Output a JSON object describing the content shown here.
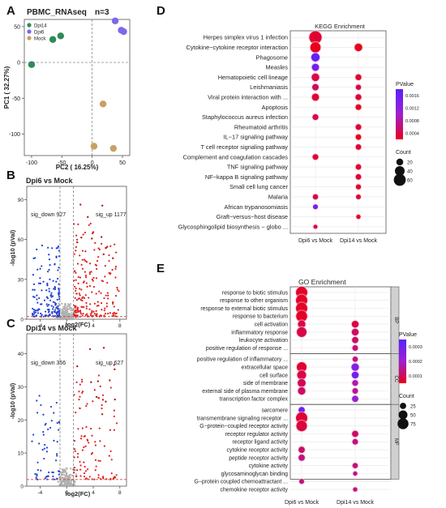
{
  "panel_labels": {
    "A": "A",
    "B": "B",
    "C": "C",
    "D": "D",
    "E": "E"
  },
  "colors": {
    "dpi14": "#2e8b57",
    "dpi6": "#7b68ee",
    "mock": "#c8a062",
    "down": "#1f3fd6",
    "up": "#e02020",
    "ns": "#b0b0b0",
    "pv_high": "#e8001c",
    "pv_low": "#5a20ff"
  },
  "chart_data": [
    {
      "type": "scatter",
      "id": "pca",
      "title": "PBMC_RNAseq",
      "subtitle": "n=3",
      "xlabel": "PC2 ( 16.25%)",
      "ylabel": "PC1 ( 32.27%)",
      "xlim": [
        -112,
        62
      ],
      "ylim": [
        -130,
        60
      ],
      "xticks": [
        -100,
        -50,
        0,
        50
      ],
      "yticks": [
        -100,
        -50,
        0,
        50
      ],
      "legend": [
        "Dpi14",
        "Dpi6",
        "Mock"
      ],
      "series": [
        {
          "name": "Dpi14",
          "color": "#2e8b57",
          "points": [
            [
              -100,
              -3
            ],
            [
              -65,
              32
            ],
            [
              -52,
              37
            ]
          ]
        },
        {
          "name": "Dpi6",
          "color": "#7b68ee",
          "points": [
            [
              38,
              58
            ],
            [
              48,
              45
            ],
            [
              52,
              43
            ]
          ]
        },
        {
          "name": "Mock",
          "color": "#c8a062",
          "points": [
            [
              18,
              -58
            ],
            [
              3,
              -117
            ],
            [
              35,
              -120
            ]
          ]
        }
      ]
    },
    {
      "type": "scatter",
      "id": "volcano_dpi6",
      "title": "Dpi6 vs Mock",
      "xlabel": "log2(FC)",
      "ylabel": "-log10 (pVal)",
      "xlim": [
        -6,
        9
      ],
      "ylim": [
        0,
        100
      ],
      "xticks": [
        -4,
        0,
        4,
        8
      ],
      "yticks": [
        0,
        30,
        60,
        90
      ],
      "thresholds": {
        "fc": [
          -1,
          1
        ],
        "p": 2
      },
      "annotations": [
        "sig_down 927",
        "sig_up 1177"
      ],
      "sig_down": 927,
      "sig_up": 1177
    },
    {
      "type": "scatter",
      "id": "volcano_dpi14",
      "title": "Dpi14 vs Mock",
      "xlabel": "log2(FC)",
      "ylabel": "-log10 (pVal)",
      "xlim": [
        -6,
        9
      ],
      "ylim": [
        0,
        46
      ],
      "xticks": [
        -4,
        0,
        4,
        8
      ],
      "yticks": [
        0,
        10,
        20,
        30,
        40
      ],
      "thresholds": {
        "fc": [
          -1,
          1
        ],
        "p": 2
      },
      "annotations": [
        "sig_down 356",
        "sig_up 627"
      ],
      "sig_down": 356,
      "sig_up": 627
    },
    {
      "type": "scatter",
      "id": "kegg",
      "title": "KEGG Enrichment",
      "categories": [
        "Dpi6 vs Mock",
        "Dpi14 vs Mock"
      ],
      "terms": [
        "Herpes simplex virus 1 infection",
        "Cytokine−cytokine receptor interaction",
        "Phagosome",
        "Measles",
        "Hematopoietic cell lineage",
        "Leishmaniasis",
        "Viral protein interaction with ...",
        "Apoptosis",
        "Staphylococcus aureus infection",
        "Rheumatoid arthritis",
        "IL−17 signaling pathway",
        "T cell receptor signaling pathway",
        "Complement and coagulation cascades",
        "TNF signaling pathway",
        "NF−kappa B signaling pathway",
        "Small cell lung cancer",
        "Malaria",
        "African trypanosomiasis",
        "Graft−versus−host disease",
        "Glycosphingolipid biosynthesis − globo ..."
      ],
      "legend_pvalue": {
        "title": "PValue",
        "ticks": [
          "0.0016",
          "0.0012",
          "0.0008",
          "0.0004"
        ],
        "range": [
          0.0001,
          0.0018
        ]
      },
      "legend_count": {
        "title": "Count",
        "values": [
          20,
          40,
          60
        ]
      },
      "points": [
        {
          "term": 0,
          "cat": 0,
          "count": 65,
          "p": 0.0002
        },
        {
          "term": 1,
          "cat": 0,
          "count": 45,
          "p": 5e-05
        },
        {
          "term": 1,
          "cat": 1,
          "count": 25,
          "p": 0.0001
        },
        {
          "term": 2,
          "cat": 0,
          "count": 30,
          "p": 0.0017
        },
        {
          "term": 3,
          "cat": 0,
          "count": 22,
          "p": 0.0015
        },
        {
          "term": 4,
          "cat": 0,
          "count": 25,
          "p": 0.0003
        },
        {
          "term": 4,
          "cat": 1,
          "count": 15,
          "p": 0.0002
        },
        {
          "term": 5,
          "cat": 0,
          "count": 18,
          "p": 0.0004
        },
        {
          "term": 5,
          "cat": 1,
          "count": 12,
          "p": 0.0003
        },
        {
          "term": 6,
          "cat": 0,
          "count": 22,
          "p": 0.0002
        },
        {
          "term": 6,
          "cat": 1,
          "count": 15,
          "p": 0.0002
        },
        {
          "term": 7,
          "cat": 1,
          "count": 14,
          "p": 0.0001
        },
        {
          "term": 8,
          "cat": 0,
          "count": 15,
          "p": 0.0003
        },
        {
          "term": 9,
          "cat": 1,
          "count": 14,
          "p": 0.0002
        },
        {
          "term": 10,
          "cat": 1,
          "count": 13,
          "p": 0.0001
        },
        {
          "term": 11,
          "cat": 1,
          "count": 13,
          "p": 0.0002
        },
        {
          "term": 12,
          "cat": 0,
          "count": 14,
          "p": 0.0002
        },
        {
          "term": 13,
          "cat": 1,
          "count": 13,
          "p": 0.0002
        },
        {
          "term": 14,
          "cat": 1,
          "count": 13,
          "p": 0.0002
        },
        {
          "term": 15,
          "cat": 1,
          "count": 11,
          "p": 0.0002
        },
        {
          "term": 16,
          "cat": 0,
          "count": 12,
          "p": 0.0003
        },
        {
          "term": 16,
          "cat": 1,
          "count": 10,
          "p": 0.0002
        },
        {
          "term": 17,
          "cat": 0,
          "count": 10,
          "p": 0.0015
        },
        {
          "term": 18,
          "cat": 1,
          "count": 8,
          "p": 0.0001
        },
        {
          "term": 19,
          "cat": 0,
          "count": 7,
          "p": 0.0003
        }
      ]
    },
    {
      "type": "scatter",
      "id": "go",
      "title": "GO Enrichment",
      "categories": [
        "Dpi6 vs Mock",
        "Dpi14 vs Mock"
      ],
      "facets": [
        {
          "name": "BP",
          "start": 0,
          "end": 7
        },
        {
          "name": "CC",
          "start": 8,
          "end": 13
        },
        {
          "name": "MF",
          "start": 14,
          "end": 22
        }
      ],
      "terms": [
        "response to biotic stimulus",
        "response to other organism",
        "response to external biotic stimulus",
        "response to bacterium",
        "cell activation",
        "inflammatory response",
        "leukocyte activation",
        "positive regulation of response ...",
        "positive regulation of inflammatory ...",
        "extracellular space",
        "cell surface",
        "side of membrane",
        "external side of plasma membrane",
        "transcription factor complex",
        "sarcomere",
        "transmembrane signaling receptor ...",
        "G−protein−coupled receptor activity",
        "receptor regulator activity",
        "receptor ligand activity",
        "cytokine receptor activity",
        "peptide receptor activity",
        "cytokine activity",
        "glycosaminoglycan binding",
        "G−protein coupled chemoattractant ...",
        "chemokine receptor activity"
      ],
      "legend_pvalue": {
        "title": "PValue",
        "ticks": [
          "0.0003",
          "0.0002",
          "0.0001"
        ],
        "range": [
          1e-05,
          0.00035
        ]
      },
      "legend_count": {
        "title": "Count",
        "values": [
          25,
          50,
          75
        ]
      },
      "points": [
        {
          "term": 0,
          "cat": 0,
          "count": 80,
          "p": 2e-05
        },
        {
          "term": 1,
          "cat": 0,
          "count": 80,
          "p": 2e-05
        },
        {
          "term": 2,
          "cat": 0,
          "count": 80,
          "p": 2e-05
        },
        {
          "term": 3,
          "cat": 0,
          "count": 75,
          "p": 2e-05
        },
        {
          "term": 4,
          "cat": 0,
          "count": 35,
          "p": 5e-05
        },
        {
          "term": 4,
          "cat": 1,
          "count": 30,
          "p": 5e-05
        },
        {
          "term": 5,
          "cat": 0,
          "count": 60,
          "p": 5e-05
        },
        {
          "term": 5,
          "cat": 1,
          "count": 30,
          "p": 8e-05
        },
        {
          "term": 6,
          "cat": 1,
          "count": 25,
          "p": 8e-05
        },
        {
          "term": 7,
          "cat": 1,
          "count": 20,
          "p": 0.0001
        },
        {
          "term": 8,
          "cat": 1,
          "count": 18,
          "p": 0.0001
        },
        {
          "term": 9,
          "cat": 0,
          "count": 60,
          "p": 3e-05
        },
        {
          "term": 9,
          "cat": 1,
          "count": 35,
          "p": 0.00025
        },
        {
          "term": 10,
          "cat": 0,
          "count": 50,
          "p": 5e-05
        },
        {
          "term": 10,
          "cat": 1,
          "count": 30,
          "p": 0.0003
        },
        {
          "term": 11,
          "cat": 0,
          "count": 40,
          "p": 6e-05
        },
        {
          "term": 11,
          "cat": 1,
          "count": 22,
          "p": 0.00015
        },
        {
          "term": 12,
          "cat": 0,
          "count": 35,
          "p": 8e-05
        },
        {
          "term": 12,
          "cat": 1,
          "count": 20,
          "p": 0.00012
        },
        {
          "term": 13,
          "cat": 1,
          "count": 25,
          "p": 0.00022
        },
        {
          "term": 14,
          "cat": 0,
          "count": 25,
          "p": 0.0003
        },
        {
          "term": 15,
          "cat": 0,
          "count": 80,
          "p": 3e-05
        },
        {
          "term": 16,
          "cat": 0,
          "count": 70,
          "p": 4e-05
        },
        {
          "term": 17,
          "cat": 1,
          "count": 25,
          "p": 8e-05
        },
        {
          "term": 18,
          "cat": 1,
          "count": 20,
          "p": 0.0001
        },
        {
          "term": 19,
          "cat": 0,
          "count": 25,
          "p": 8e-05
        },
        {
          "term": 20,
          "cat": 0,
          "count": 25,
          "p": 0.0001
        },
        {
          "term": 21,
          "cat": 1,
          "count": 18,
          "p": 0.0001
        },
        {
          "term": 22,
          "cat": 1,
          "count": 12,
          "p": 0.00012
        },
        {
          "term": 23,
          "cat": 0,
          "count": 15,
          "p": 0.0001
        },
        {
          "term": 24,
          "cat": 1,
          "count": 12,
          "p": 0.0001
        }
      ]
    }
  ]
}
